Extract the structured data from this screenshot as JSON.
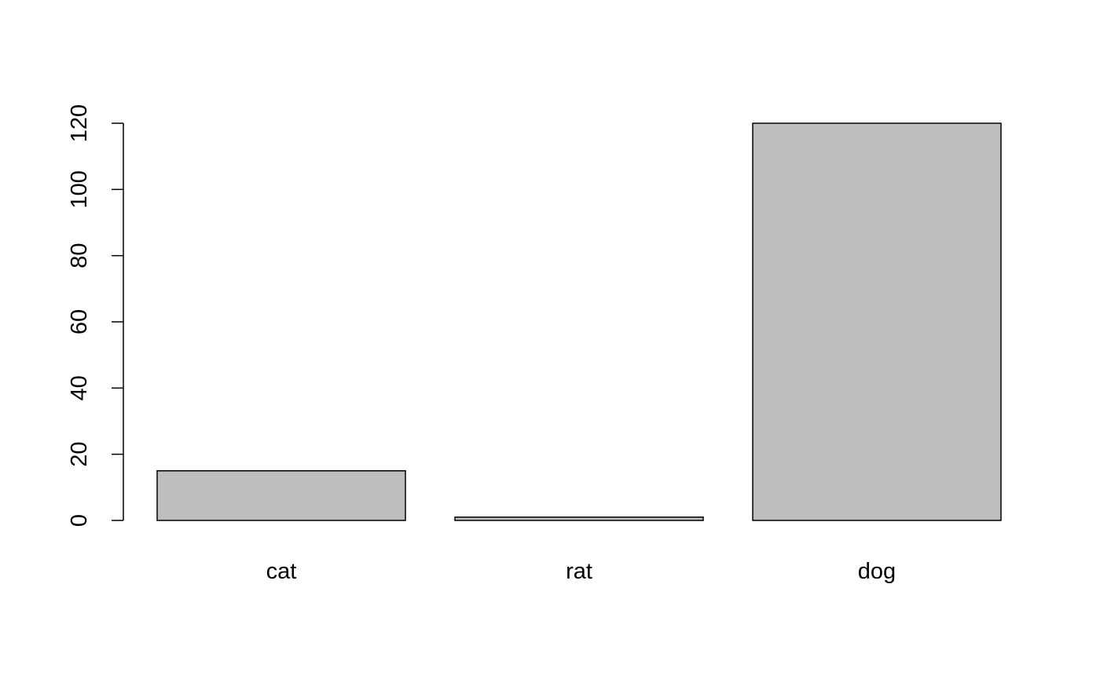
{
  "chart_data": {
    "type": "bar",
    "categories": [
      "cat",
      "rat",
      "dog"
    ],
    "values": [
      15,
      1,
      120
    ],
    "ylim": [
      0,
      120
    ],
    "yticks": [
      0,
      20,
      40,
      60,
      80,
      100,
      120
    ],
    "ytick_labels": [
      "0",
      "20",
      "40",
      "60",
      "80",
      "100",
      "120"
    ],
    "title": "",
    "xlabel": "",
    "ylabel": "",
    "grid": false,
    "legend": "none",
    "bar_fill": "#bebebe",
    "bar_stroke": "#000000",
    "axis_color": "#000000"
  }
}
